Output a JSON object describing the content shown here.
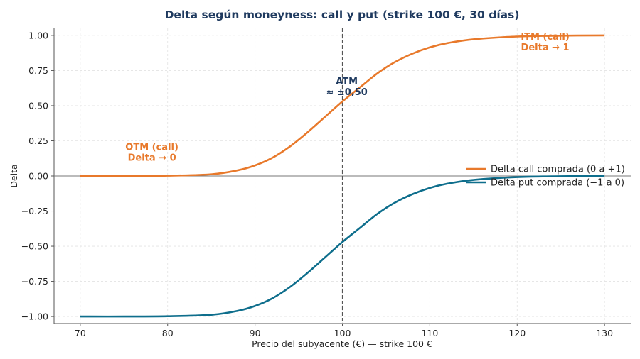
{
  "chart_data": {
    "type": "line",
    "title": "Delta según moneyness: call y put (strike 100 €, 30 días)",
    "xlabel": "Precio del subyacente (€) — strike 100 €",
    "ylabel": "Delta",
    "xlim": [
      67,
      133
    ],
    "ylim": [
      -1.05,
      1.05
    ],
    "x_ticks": [
      70,
      80,
      90,
      100,
      110,
      120,
      130
    ],
    "y_ticks": [
      -1.0,
      -0.75,
      -0.5,
      -0.25,
      0.0,
      0.25,
      0.5,
      0.75,
      1.0
    ],
    "x_tick_labels": [
      "70",
      "80",
      "90",
      "100",
      "110",
      "120",
      "130"
    ],
    "y_tick_labels": [
      "−1.00",
      "−0.75",
      "−0.50",
      "−0.25",
      "0.00",
      "0.25",
      "0.50",
      "0.75",
      "1.00"
    ],
    "grid": true,
    "legend_position": "center-right",
    "strike_line_x": 100,
    "x": [
      70,
      75,
      80,
      85,
      88,
      90,
      92,
      94,
      96,
      98,
      100,
      102,
      104,
      106,
      108,
      110,
      112,
      115,
      120,
      125,
      130
    ],
    "series": [
      {
        "name": "Delta call comprada (0 a +1)",
        "color": "#e8792b",
        "values": [
          0.0,
          0.0,
          0.002,
          0.012,
          0.04,
          0.075,
          0.13,
          0.21,
          0.31,
          0.42,
          0.53,
          0.63,
          0.73,
          0.81,
          0.87,
          0.915,
          0.945,
          0.972,
          0.992,
          0.998,
          1.0
        ]
      },
      {
        "name": "Delta put comprada (−1 a 0)",
        "color": "#0e6e8c",
        "values": [
          -1.0,
          -1.0,
          -0.998,
          -0.988,
          -0.96,
          -0.925,
          -0.87,
          -0.79,
          -0.69,
          -0.58,
          -0.47,
          -0.37,
          -0.27,
          -0.19,
          -0.13,
          -0.085,
          -0.055,
          -0.028,
          -0.008,
          -0.002,
          0.0
        ]
      }
    ],
    "annotations": [
      {
        "lines": [
          "OTM (call)",
          "Delta → 0"
        ],
        "x": 78.2,
        "y": 0.15,
        "color": "#e8792b"
      },
      {
        "lines": [
          "ATM",
          "≈ ±0,50"
        ],
        "x": 100.5,
        "y": 0.615,
        "color": "#1f3a5f"
      },
      {
        "lines": [
          "ITM (call)",
          "Delta → 1"
        ],
        "x": 123.2,
        "y": 0.935,
        "color": "#e8792b"
      }
    ]
  }
}
